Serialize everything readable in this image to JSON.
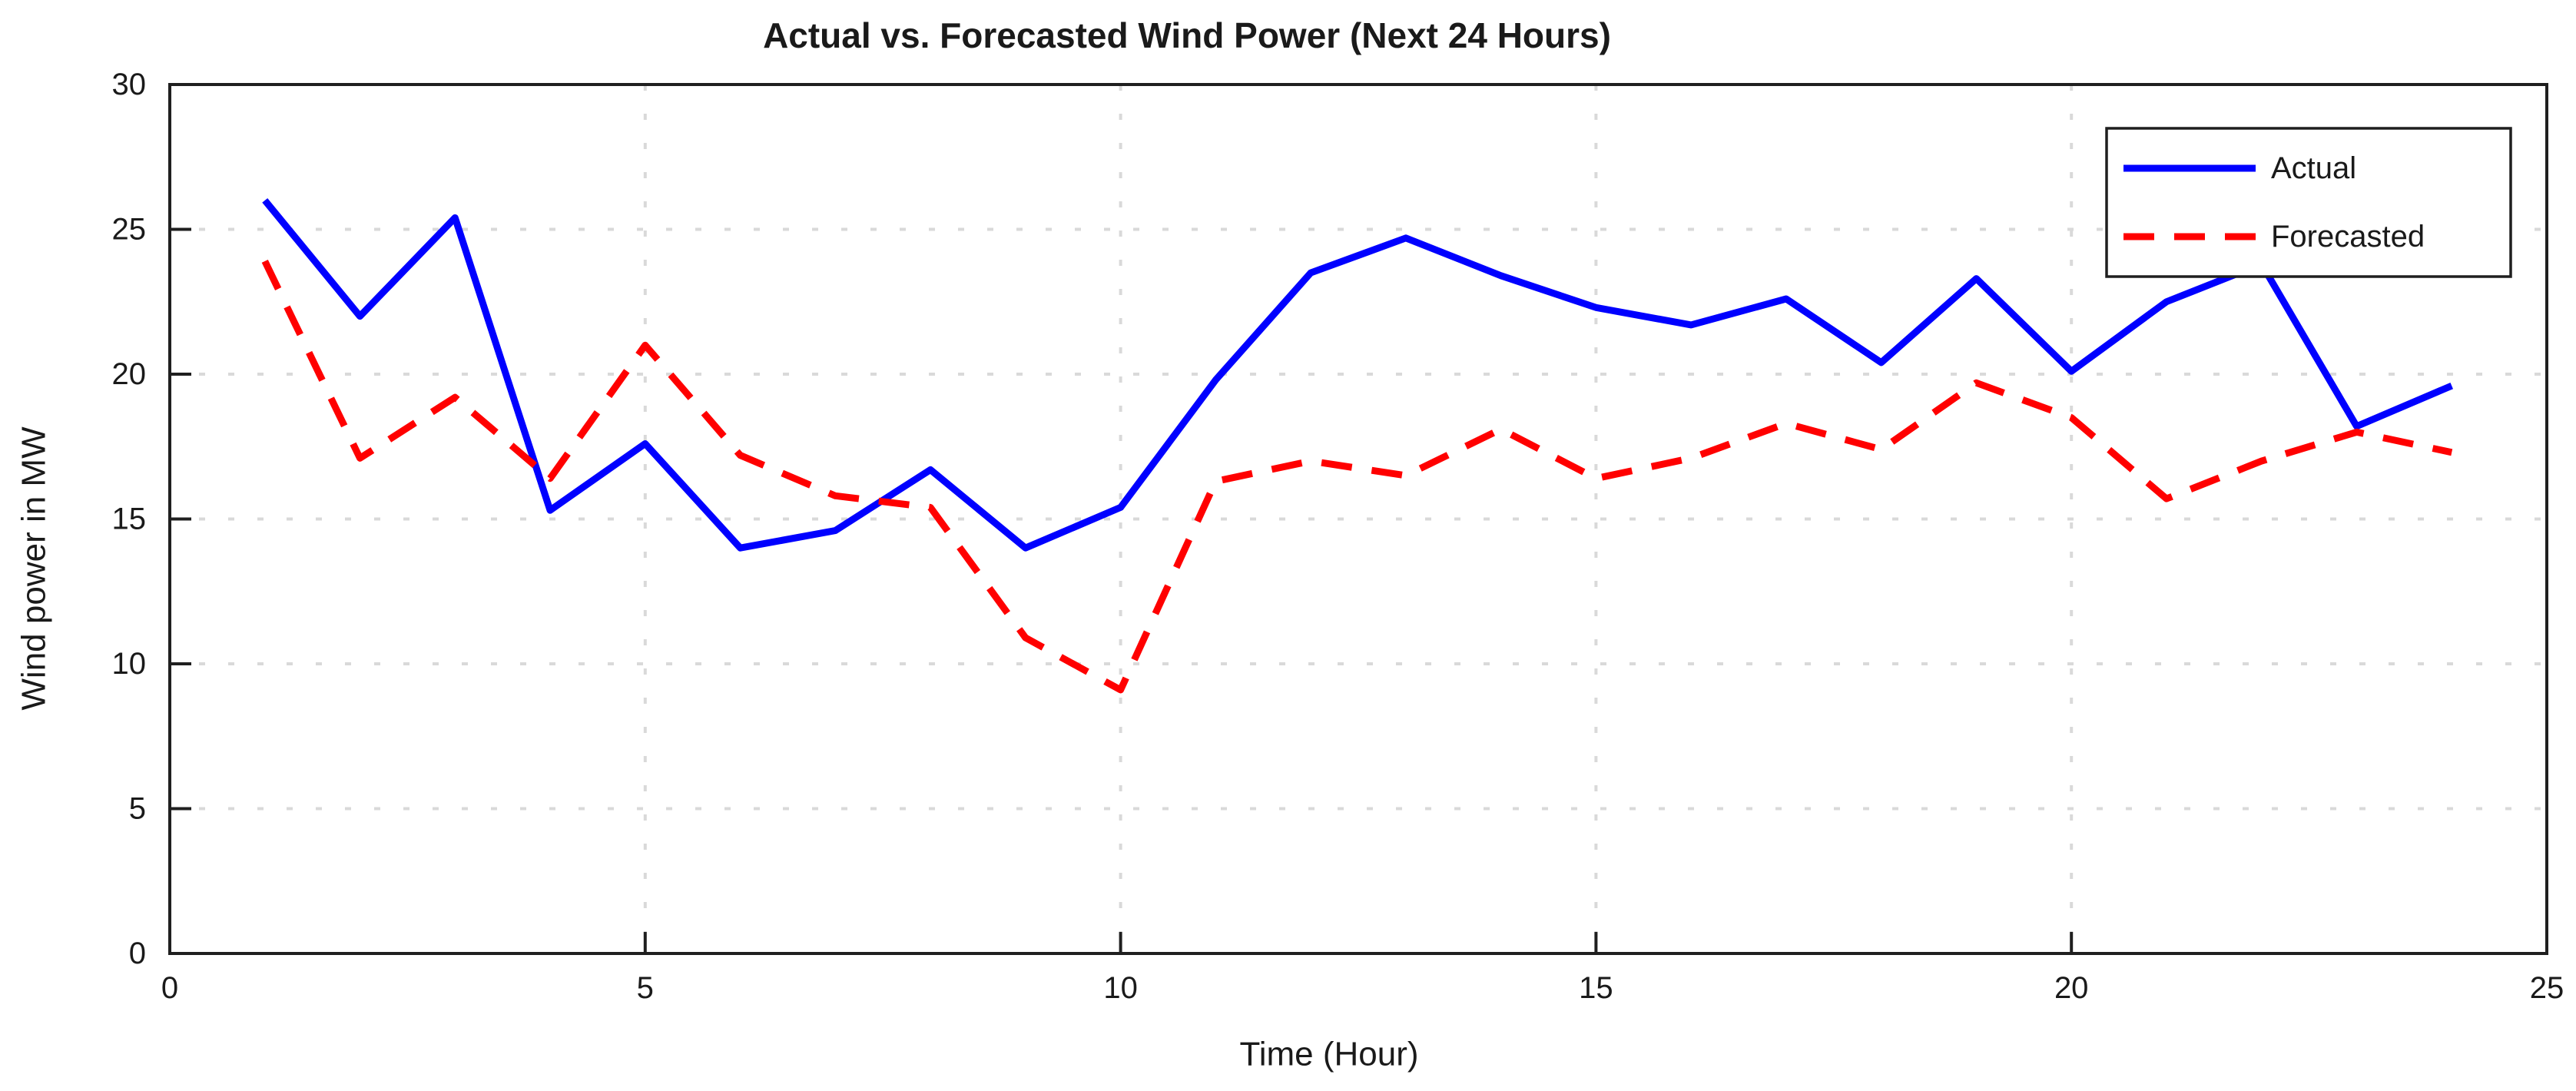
{
  "chart_data": {
    "type": "line",
    "title": "Actual vs. Forecasted Wind Power (Next 24 Hours)",
    "xlabel": "Time (Hour)",
    "ylabel": "Wind power in MW",
    "xlim": [
      0,
      25
    ],
    "ylim": [
      0,
      30
    ],
    "xticks": [
      0,
      5,
      10,
      15,
      20,
      25
    ],
    "yticks": [
      0,
      5,
      10,
      15,
      20,
      25,
      30
    ],
    "grid": true,
    "grid_style": "dotted",
    "legend_position": "top-right",
    "x": [
      1,
      2,
      3,
      4,
      5,
      6,
      7,
      8,
      9,
      10,
      11,
      12,
      13,
      14,
      15,
      16,
      17,
      18,
      19,
      20,
      21,
      22,
      23,
      24
    ],
    "series": [
      {
        "name": "Actual",
        "color": "#0000FF",
        "style": "solid",
        "values": [
          26.0,
          22.0,
          25.4,
          15.3,
          17.6,
          14.0,
          14.6,
          16.7,
          14.0,
          15.4,
          19.8,
          23.5,
          24.7,
          23.4,
          22.3,
          21.7,
          22.6,
          20.4,
          23.3,
          20.1,
          22.5,
          23.8,
          18.2,
          19.6
        ]
      },
      {
        "name": "Forecasted",
        "color": "#FF0000",
        "style": "dashed",
        "values": [
          23.9,
          17.1,
          19.2,
          16.4,
          21.0,
          17.2,
          15.8,
          15.4,
          10.9,
          9.1,
          16.3,
          17.0,
          16.5,
          18.1,
          16.4,
          17.1,
          18.3,
          17.4,
          19.7,
          18.5,
          15.7,
          17.0,
          18.0,
          17.3
        ]
      }
    ],
    "colors": {
      "axis": "#1f1f1f",
      "grid": "#d9d9d9",
      "background": "#ffffff",
      "text": "#1a1a1a"
    }
  }
}
